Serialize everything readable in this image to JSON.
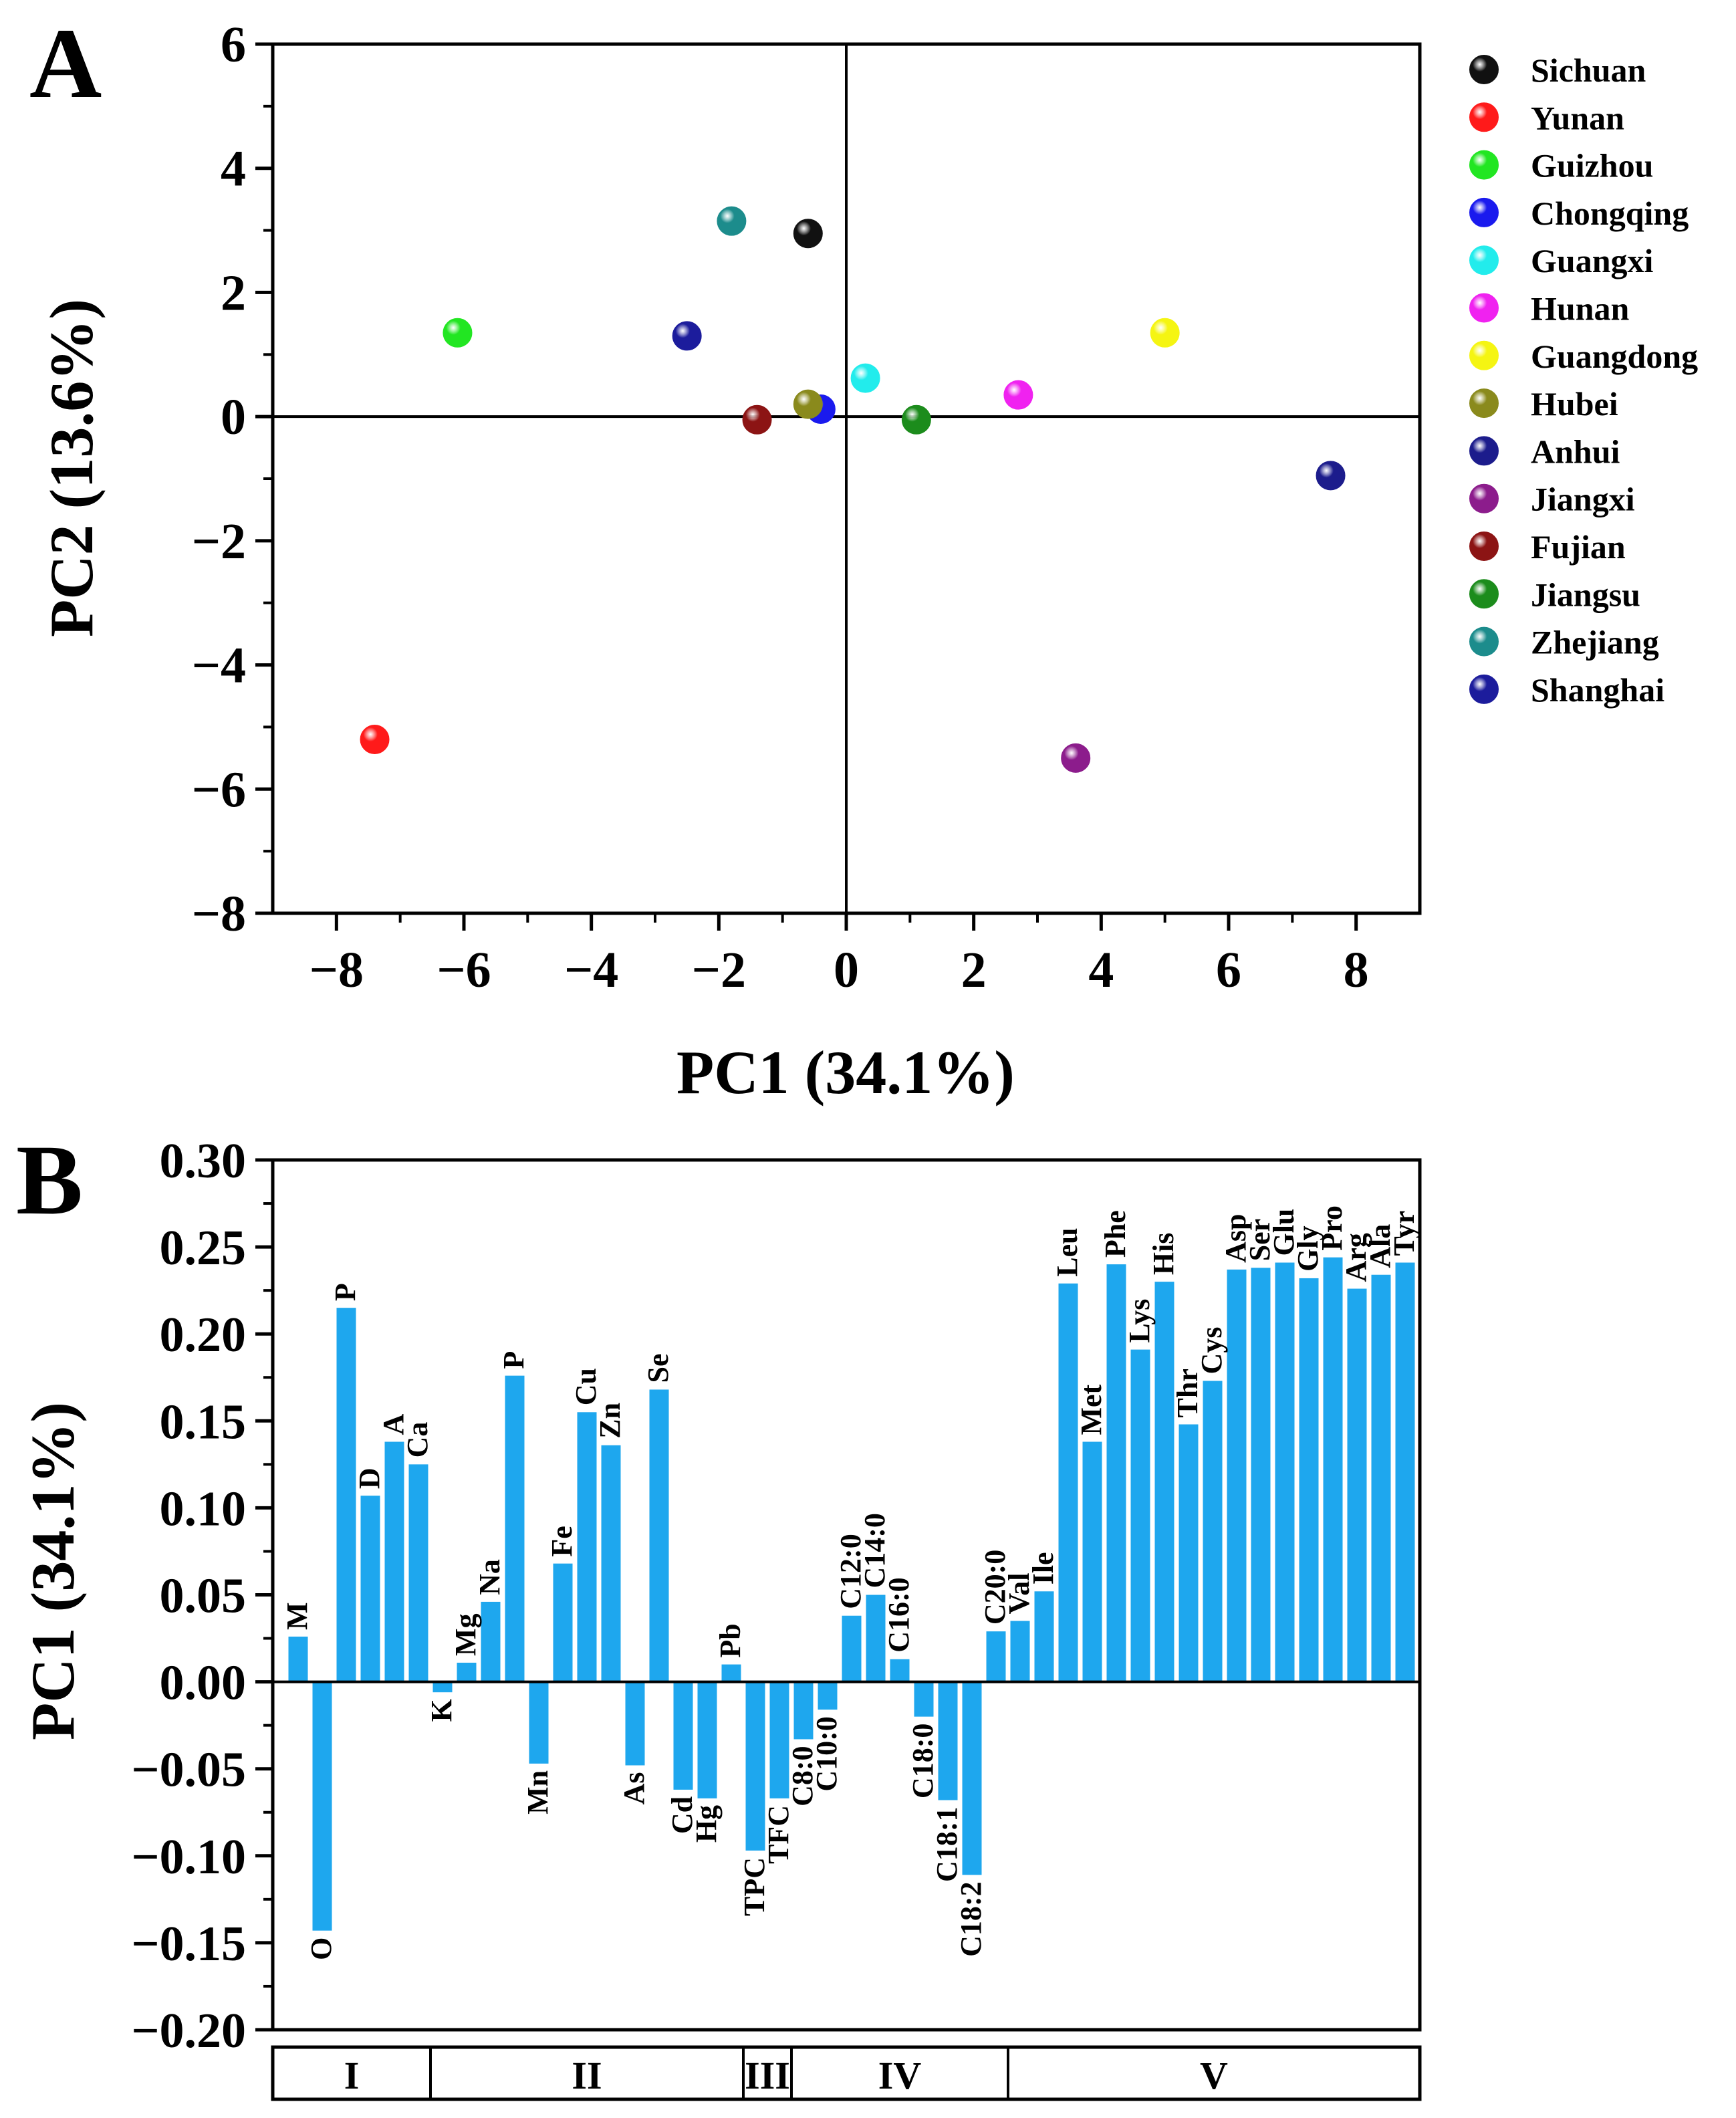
{
  "chart_data": [
    {
      "panel": "A",
      "type": "scatter",
      "xlabel": "PC1 (34.1%)",
      "ylabel": "PC2 (13.6%)",
      "xlim": [
        -9,
        9
      ],
      "ylim": [
        -8,
        6
      ],
      "xticks": [
        -8,
        -6,
        -4,
        -2,
        0,
        2,
        4,
        6,
        8
      ],
      "yticks": [
        -8,
        -6,
        -4,
        -2,
        0,
        2,
        4,
        6
      ],
      "x_tick_labels": [
        "−8",
        "−6",
        "−4",
        "−2",
        "0",
        "2",
        "4",
        "6",
        "8"
      ],
      "y_tick_labels": [
        "−8",
        "−6",
        "−4",
        "−2",
        "0",
        "2",
        "4",
        "6"
      ],
      "legend_position": "right",
      "points": [
        {
          "name": "Sichuan",
          "x": -0.6,
          "y": 2.95,
          "color": "#111111"
        },
        {
          "name": "Yunan",
          "x": -7.4,
          "y": -5.2,
          "color": "#ff1a1a"
        },
        {
          "name": "Guizhou",
          "x": -6.1,
          "y": 1.35,
          "color": "#22e622"
        },
        {
          "name": "Chongqing",
          "x": -0.4,
          "y": 0.12,
          "color": "#1a1aee"
        },
        {
          "name": "Guangxi",
          "x": 0.3,
          "y": 0.62,
          "color": "#22ecec"
        },
        {
          "name": "Hunan",
          "x": 2.7,
          "y": 0.35,
          "color": "#f022f0"
        },
        {
          "name": "Guangdong",
          "x": 5.0,
          "y": 1.35,
          "color": "#f5f512"
        },
        {
          "name": "Hubei",
          "x": -0.6,
          "y": 0.2,
          "color": "#8a8a1c"
        },
        {
          "name": "Anhui",
          "x": 7.6,
          "y": -0.95,
          "color": "#1c1c8c"
        },
        {
          "name": "Jiangxi",
          "x": 3.6,
          "y": -5.5,
          "color": "#8c1c8c"
        },
        {
          "name": "Fujian",
          "x": -1.4,
          "y": -0.05,
          "color": "#8c1414"
        },
        {
          "name": "Jiangsu",
          "x": 1.1,
          "y": -0.05,
          "color": "#1c8c1c"
        },
        {
          "name": "Zhejiang",
          "x": -1.8,
          "y": 3.15,
          "color": "#1c8c8c"
        },
        {
          "name": "Shanghai",
          "x": -2.5,
          "y": 1.3,
          "color": "#1c1c9c"
        }
      ]
    },
    {
      "panel": "B",
      "type": "bar",
      "ylabel": "PC1 (34.1%)",
      "ylim": [
        -0.2,
        0.3
      ],
      "yticks": [
        -0.2,
        -0.15,
        -0.1,
        -0.05,
        0,
        0.05,
        0.1,
        0.15,
        0.2,
        0.25,
        0.3
      ],
      "y_tick_labels": [
        "−0.20",
        "−0.15",
        "−0.10",
        "−0.05",
        "0.00",
        "0.05",
        "0.10",
        "0.15",
        "0.20",
        "0.25",
        "0.30"
      ],
      "bar_color": "#1ea7ee",
      "categories": [
        "M",
        "O",
        "P",
        "D",
        "A",
        "Ca",
        "K",
        "Mg",
        "Na",
        "P",
        "Mn",
        "Fe",
        "Cu",
        "Zn",
        "As",
        "Se",
        "Cd",
        "Hg",
        "Pb",
        "TPC",
        "TFC",
        "C8:0",
        "C10:0",
        "C12:0",
        "C14:0",
        "C16:0",
        "C18:0",
        "C18:1",
        "C18:2",
        "C20:0",
        "Val",
        "Ile",
        "Leu",
        "Met",
        "Phe",
        "Lys",
        "His",
        "Thr",
        "Cys",
        "Asp",
        "Ser",
        "Glu",
        "Gly",
        "Pro",
        "Arg",
        "Ala",
        "Tyr"
      ],
      "values": [
        0.026,
        -0.143,
        0.215,
        0.107,
        0.138,
        0.125,
        -0.006,
        0.011,
        0.046,
        0.176,
        -0.047,
        0.068,
        0.155,
        0.136,
        -0.048,
        0.168,
        -0.062,
        -0.067,
        0.01,
        -0.097,
        -0.067,
        -0.033,
        -0.016,
        0.038,
        0.05,
        0.013,
        -0.02,
        -0.068,
        -0.111,
        0.029,
        0.035,
        0.052,
        0.229,
        0.138,
        0.24,
        0.191,
        0.23,
        0.148,
        0.173,
        0.237,
        0.238,
        0.241,
        0.232,
        0.244,
        0.226,
        0.234,
        0.241
      ],
      "groups": [
        {
          "label": "I",
          "first_bar": 0,
          "count": 6
        },
        {
          "label": "II",
          "first_bar": 6,
          "count": 13
        },
        {
          "label": "III",
          "first_bar": 19,
          "count": 2
        },
        {
          "label": "IV",
          "first_bar": 21,
          "count": 9
        },
        {
          "label": "V",
          "first_bar": 30,
          "count": 17
        }
      ]
    }
  ]
}
